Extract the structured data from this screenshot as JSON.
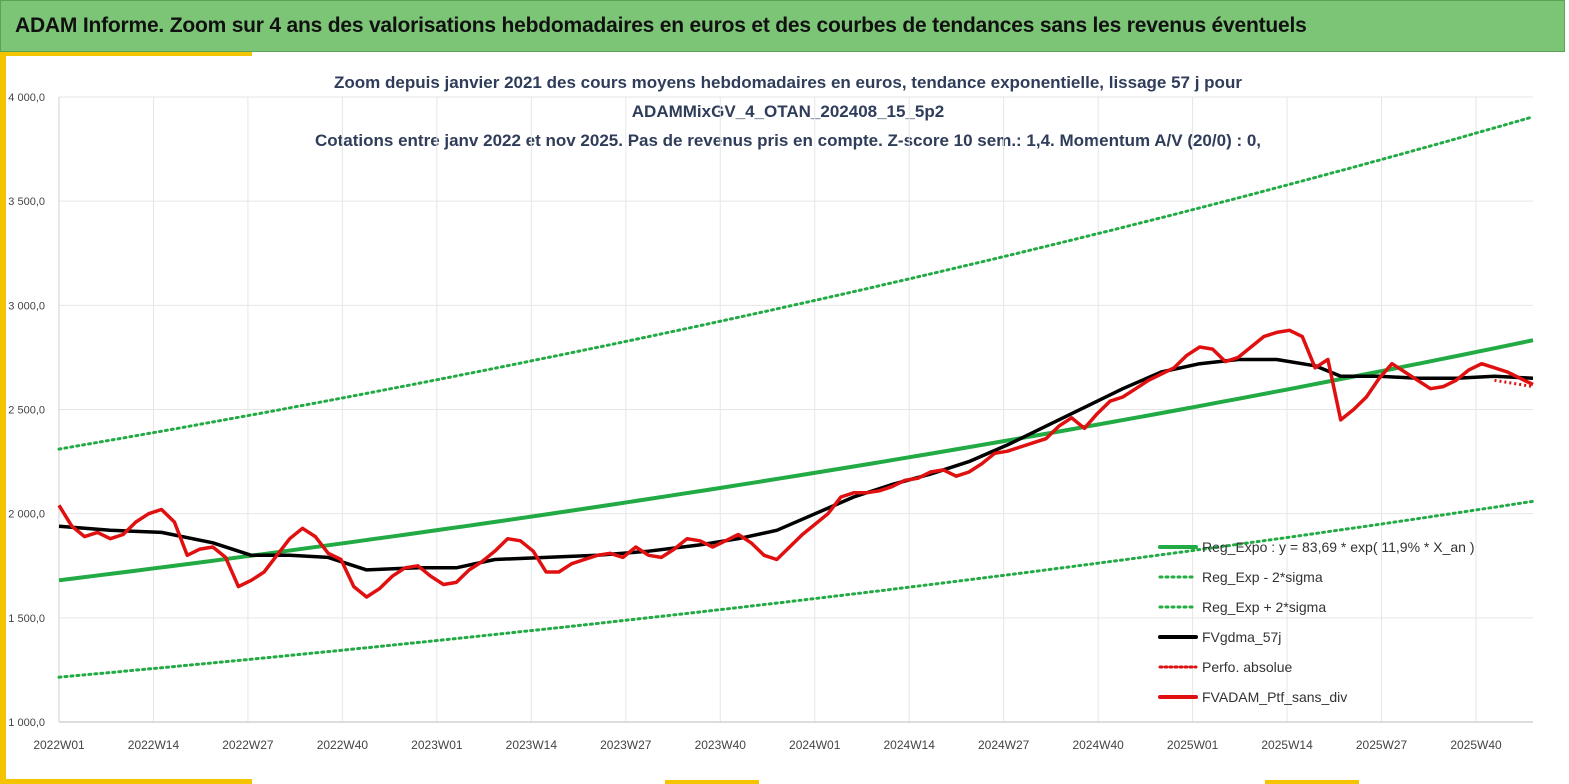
{
  "header": {
    "title": "ADAM Informe. Zoom sur 4 ans des valorisations hebdomadaires en euros et des courbes de tendances sans les revenus éventuels"
  },
  "colors": {
    "banner": "#7cc576",
    "accent": "#f5c400",
    "title_text": "#2f3d5a",
    "reg_expo": "#22aa44",
    "sigma": "#22aa44",
    "fvgdma": "#000000",
    "perfo": "#dd1111",
    "fvadam": "#e01010",
    "grid": "#e6e6e6"
  },
  "chart_data": {
    "type": "line",
    "title_lines": [
      "Zoom depuis janvier 2021 des cours moyens hebdomadaires  en euros, tendance exponentielle, lissage 57 j pour",
      "ADAMMixGV_4_OTAN_202408_15_5p2",
      "Cotations entre janv 2022 et nov 2025. Pas de revenus pris en compte. Z-score 10 sem.: 1,4. Momentum A/V (20/0) : 0,"
    ],
    "y_ticks": [
      "1 000,0",
      "1 500,0",
      "2 000,0",
      "2 500,0",
      "3 000,0",
      "3 500,0",
      "4 000,0"
    ],
    "y_tick_values": [
      1000,
      1500,
      2000,
      2500,
      3000,
      3500,
      4000
    ],
    "ylim": [
      1000,
      4000
    ],
    "x_ticks": [
      "2022W01",
      "2022W14",
      "2022W27",
      "2022W40",
      "2023W01",
      "2023W14",
      "2023W27",
      "2023W40",
      "2024W01",
      "2024W14",
      "2024W27",
      "2024W40",
      "2025W01",
      "2025W14",
      "2025W27",
      "2025W40"
    ],
    "x_unit_note_weeks_per_tick": 13,
    "x_range_weeks": [
      0,
      204
    ],
    "grid": "vertical and horizontal",
    "legend_placement": "bottom-right",
    "legend": [
      {
        "key": "reg_expo",
        "label": "Reg_Expo : y = 83,69 * exp( 11,9% *  X_an )",
        "style": "solid-green"
      },
      {
        "key": "reg_minus",
        "label": "Reg_Exp - 2*sigma",
        "style": "dotted-green"
      },
      {
        "key": "reg_plus",
        "label": "Reg_Exp + 2*sigma",
        "style": "dotted-green"
      },
      {
        "key": "fvgdma",
        "label": "FVgdma_57j",
        "style": "solid-black"
      },
      {
        "key": "perfo",
        "label": "Perfo. absolue",
        "style": "dotted-red"
      },
      {
        "key": "fvadam",
        "label": "FVADAM_Ptf_sans_div",
        "style": "solid-red"
      }
    ],
    "series": {
      "reg_expo": {
        "start": [
          0,
          1680
        ],
        "end": [
          204,
          2670
        ]
      },
      "reg_plus": {
        "start": [
          0,
          2310
        ],
        "end": [
          204,
          3680
        ]
      },
      "reg_minus": {
        "start": [
          0,
          1215
        ],
        "end": [
          204,
          1940
        ]
      },
      "fvadam": {
        "x": [
          0,
          2,
          4,
          6,
          8,
          10,
          12,
          14,
          16,
          18,
          20,
          22,
          24,
          26,
          28,
          30,
          32,
          34,
          36,
          38,
          40,
          42,
          44,
          46,
          48,
          50,
          52,
          54,
          56,
          58,
          60,
          62,
          64,
          66,
          68,
          70,
          72,
          74,
          76,
          78,
          80,
          82,
          84,
          86,
          88,
          90,
          92,
          94,
          96,
          98,
          100,
          102,
          104,
          106,
          108,
          110,
          112,
          114,
          116,
          118,
          120,
          122,
          124,
          126,
          128,
          130,
          132,
          134,
          136,
          138,
          140,
          142,
          144,
          146,
          148,
          150,
          152,
          154,
          156,
          158,
          160,
          162,
          164,
          166,
          168,
          170,
          172,
          174,
          176,
          178,
          180,
          182,
          184,
          186,
          188,
          190,
          192,
          194,
          196,
          198,
          200
        ],
        "y": [
          2040,
          1940,
          1890,
          1910,
          1880,
          1900,
          1960,
          2000,
          2020,
          1960,
          1800,
          1830,
          1840,
          1790,
          1650,
          1680,
          1720,
          1800,
          1880,
          1930,
          1890,
          1810,
          1780,
          1650,
          1600,
          1640,
          1700,
          1740,
          1750,
          1700,
          1660,
          1670,
          1730,
          1770,
          1820,
          1880,
          1870,
          1820,
          1720,
          1720,
          1760,
          1780,
          1800,
          1810,
          1790,
          1840,
          1800,
          1790,
          1830,
          1880,
          1870,
          1840,
          1870,
          1900,
          1860,
          1800,
          1780,
          1840,
          1900,
          1950,
          2000,
          2080,
          2100,
          2100,
          2110,
          2130,
          2160,
          2170,
          2200,
          2210,
          2180,
          2200,
          2240,
          2290,
          2300,
          2320,
          2340,
          2360,
          2420,
          2460,
          2410,
          2480,
          2540,
          2560,
          2600,
          2640,
          2670,
          2700,
          2760,
          2800,
          2790,
          2730,
          2750,
          2800,
          2850,
          2870,
          2880,
          2850,
          2700,
          2740,
          2450
        ],
        "x_tail": [
          200,
          202,
          204,
          206,
          208,
          210,
          212,
          214,
          216,
          218,
          220,
          222,
          224,
          226,
          228,
          230
        ],
        "y_tail": [
          2450,
          2500,
          2560,
          2650,
          2720,
          2680,
          2640,
          2600,
          2610,
          2640,
          2690,
          2720,
          2700,
          2680,
          2650,
          2620
        ]
      },
      "fvgdma": {
        "x": [
          0,
          8,
          16,
          24,
          30,
          36,
          42,
          48,
          56,
          62,
          68,
          76,
          84,
          92,
          100,
          106,
          112,
          118,
          124,
          130,
          136,
          142,
          148,
          154,
          160,
          166,
          172,
          178,
          184,
          190,
          196,
          200,
          206,
          212,
          218,
          224,
          230
        ],
        "y": [
          1940,
          1920,
          1910,
          1860,
          1800,
          1800,
          1790,
          1730,
          1740,
          1740,
          1780,
          1790,
          1800,
          1820,
          1850,
          1880,
          1920,
          2000,
          2080,
          2140,
          2190,
          2250,
          2330,
          2420,
          2510,
          2600,
          2680,
          2720,
          2740,
          2740,
          2710,
          2660,
          2660,
          2650,
          2650,
          2660,
          2650
        ]
      },
      "perfo": {
        "x": [
          224,
          226,
          228,
          230
        ],
        "y": [
          2640,
          2630,
          2620,
          2610
        ]
      }
    }
  }
}
